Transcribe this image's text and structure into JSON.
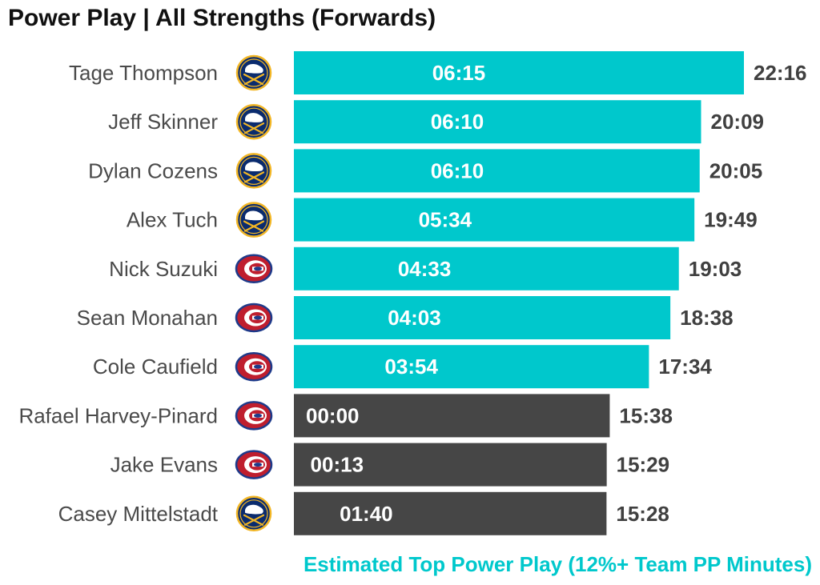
{
  "title": "Power Play | All Strengths (Forwards)",
  "caption": "Estimated Top Power Play (12%+ Team PP Minutes)",
  "colors": {
    "top_pp": "#00c8cc",
    "other": "#464646",
    "sabres_navy": "#0a2b6e",
    "sabres_gold": "#f2b625",
    "habs_red": "#bf1e2e",
    "habs_blue": "#1e3a8a"
  },
  "chart_data": {
    "type": "bar",
    "orientation": "horizontal",
    "xlim": [
      0,
      22.27
    ],
    "value_unit": "minutes (mm:ss)",
    "bars": [
      {
        "player": "Tage Thompson",
        "team_icon": "sabres-logo-icon",
        "total": 22.27,
        "total_label": "22:16",
        "pp": 6.25,
        "pp_label": "06:15",
        "top_pp": true
      },
      {
        "player": "Jeff Skinner",
        "team_icon": "sabres-logo-icon",
        "total": 20.15,
        "total_label": "20:09",
        "pp": 6.17,
        "pp_label": "06:10",
        "top_pp": true
      },
      {
        "player": "Dylan Cozens",
        "team_icon": "sabres-logo-icon",
        "total": 20.08,
        "total_label": "20:05",
        "pp": 6.17,
        "pp_label": "06:10",
        "top_pp": true
      },
      {
        "player": "Alex Tuch",
        "team_icon": "sabres-logo-icon",
        "total": 19.82,
        "total_label": "19:49",
        "pp": 5.57,
        "pp_label": "05:34",
        "top_pp": true
      },
      {
        "player": "Nick Suzuki",
        "team_icon": "canadiens-logo-icon",
        "total": 19.05,
        "total_label": "19:03",
        "pp": 4.55,
        "pp_label": "04:33",
        "top_pp": true
      },
      {
        "player": "Sean Monahan",
        "team_icon": "canadiens-logo-icon",
        "total": 18.63,
        "total_label": "18:38",
        "pp": 4.05,
        "pp_label": "04:03",
        "top_pp": true
      },
      {
        "player": "Cole Caufield",
        "team_icon": "canadiens-logo-icon",
        "total": 17.57,
        "total_label": "17:34",
        "pp": 3.9,
        "pp_label": "03:54",
        "top_pp": true
      },
      {
        "player": "Rafael Harvey-Pinard",
        "team_icon": "canadiens-logo-icon",
        "total": 15.63,
        "total_label": "15:38",
        "pp": 0.0,
        "pp_label": "00:00",
        "top_pp": false
      },
      {
        "player": "Jake Evans",
        "team_icon": "canadiens-logo-icon",
        "total": 15.48,
        "total_label": "15:29",
        "pp": 0.22,
        "pp_label": "00:13",
        "top_pp": false
      },
      {
        "player": "Casey Mittelstadt",
        "team_icon": "sabres-logo-icon",
        "total": 15.47,
        "total_label": "15:28",
        "pp": 1.67,
        "pp_label": "01:40",
        "top_pp": false
      }
    ]
  }
}
